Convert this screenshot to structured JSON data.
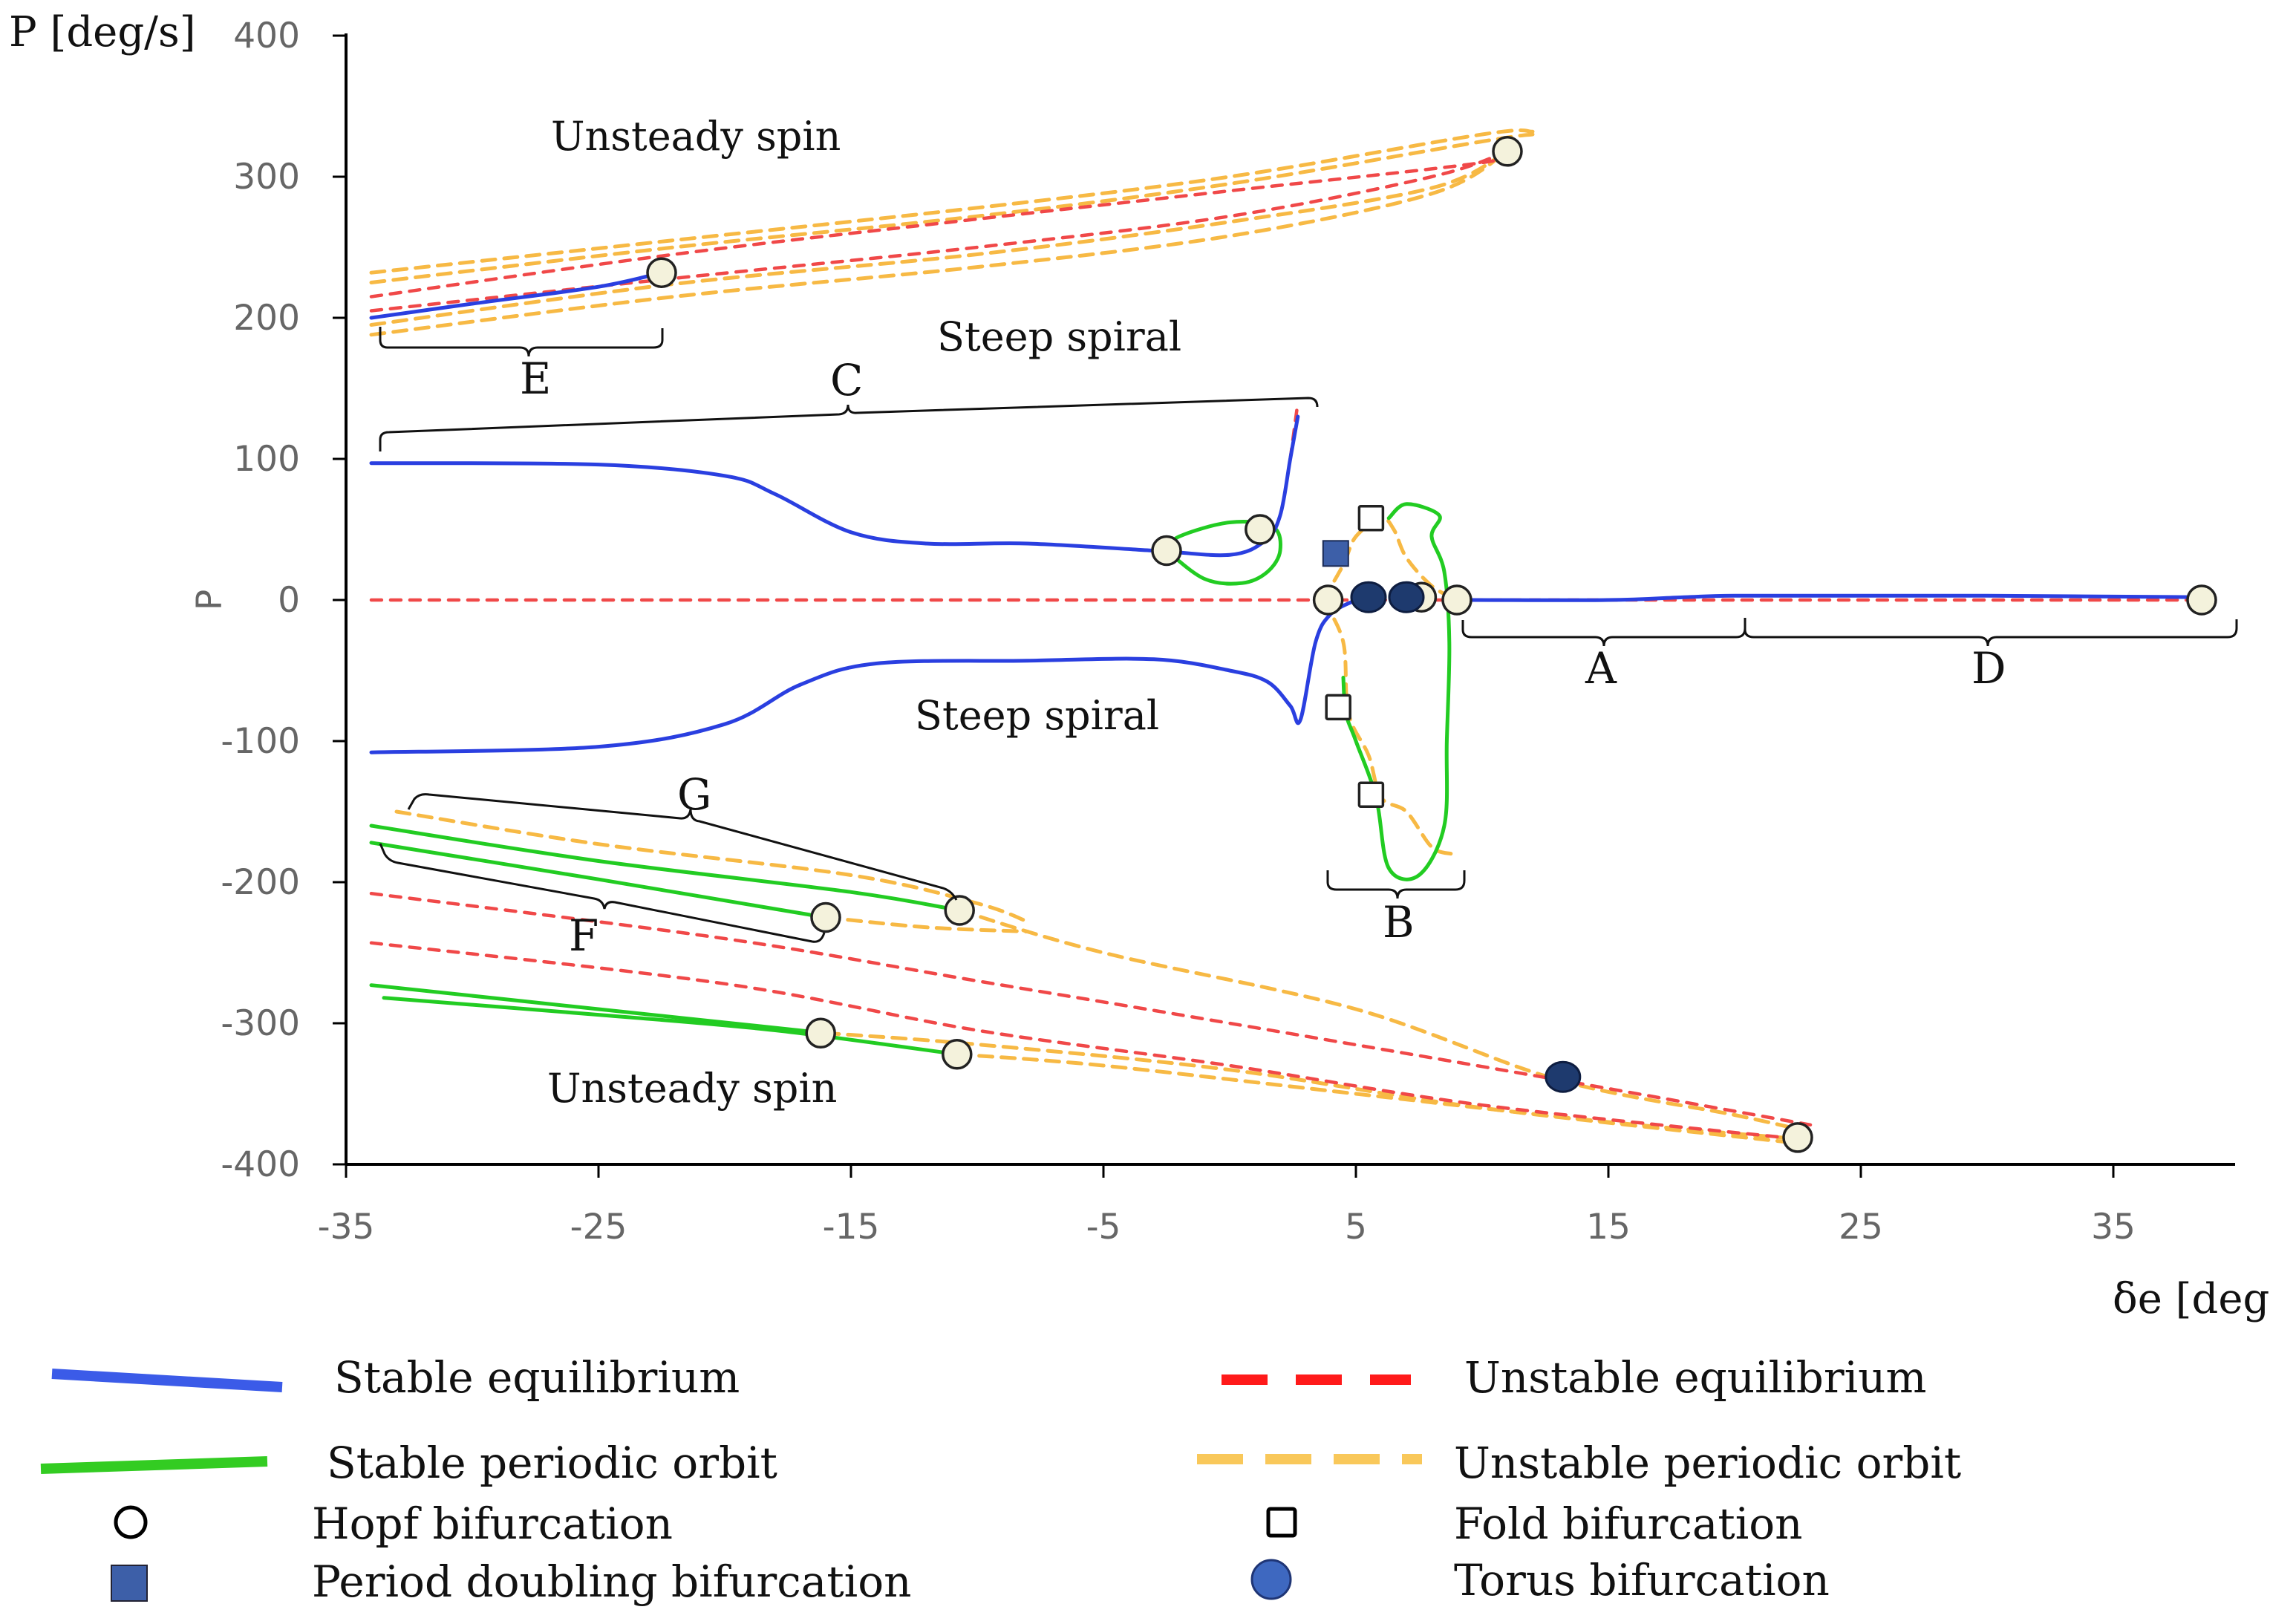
{
  "chart_data": {
    "type": "line",
    "title": "",
    "ylabel": "P [deg/s]",
    "ylabel_inner": "P",
    "xlabel": "δe [deg]",
    "xlim": [
      -35,
      40
    ],
    "ylim": [
      -400,
      400
    ],
    "x_ticks": [
      "-35",
      "-25",
      "-15",
      "-5",
      "5",
      "15",
      "25",
      "35"
    ],
    "y_ticks": [
      "400",
      "300",
      "200",
      "100",
      "0",
      "-100",
      "-200",
      "-300",
      "-400"
    ],
    "annotations": {
      "unsteady_spin_top": "Unsteady spin",
      "steep_spiral_top": "Steep spiral",
      "steep_spiral_bottom": "Steep spiral",
      "unsteady_spin_bottom": "Unsteady spin"
    },
    "regions": {
      "A": "A",
      "B": "B",
      "C": "C",
      "D": "D",
      "E": "E",
      "F": "F",
      "G": "G"
    },
    "legend": {
      "stable_eq": "Stable equilibrium",
      "unstable_eq": "Unstable equilibrium",
      "stable_po": "Stable periodic orbit",
      "unstable_po": "Unstable periodic orbit",
      "hopf": "Hopf bifurcation",
      "fold": "Fold bifurcation",
      "pd": "Period doubling bifurcation",
      "torus": "Torus  bifurcation"
    },
    "colors": {
      "stable_eq": "#2a3fe0",
      "unstable_eq": "#f04848",
      "stable_po": "#22cc22",
      "unstable_po": "#f7b944",
      "hopf_fill": "#f4f2dc",
      "torus_fill": "#1e3a6e",
      "pd_fill": "#3d5fa8"
    },
    "series": [
      {
        "name": "Stable equilibrium (upper)",
        "style": "stable_eq",
        "points": [
          [
            -34,
            97
          ],
          [
            -25,
            96
          ],
          [
            -20,
            88
          ],
          [
            -18,
            75
          ],
          [
            -15,
            48
          ],
          [
            -12,
            40
          ],
          [
            -8,
            40
          ],
          [
            -3,
            35
          ],
          [
            0,
            32
          ],
          [
            1.4,
            42
          ],
          [
            2,
            60
          ],
          [
            2.4,
            100
          ],
          [
            2.7,
            130
          ]
        ]
      },
      {
        "name": "Stable equilibrium (lower)",
        "style": "stable_eq",
        "points": [
          [
            -34,
            -108
          ],
          [
            -25,
            -104
          ],
          [
            -20,
            -88
          ],
          [
            -17,
            -60
          ],
          [
            -14,
            -45
          ],
          [
            -8,
            -43
          ],
          [
            -3,
            -42
          ],
          [
            0,
            -50
          ],
          [
            1.5,
            -58
          ],
          [
            2.4,
            -75
          ],
          [
            2.8,
            -85
          ],
          [
            3.4,
            -30
          ],
          [
            4,
            -10
          ],
          [
            5,
            0
          ]
        ]
      },
      {
        "name": "Stable equilibrium (A)",
        "style": "stable_eq",
        "points": [
          [
            9.5,
            0
          ],
          [
            15,
            0
          ],
          [
            18,
            2
          ],
          [
            20,
            3
          ],
          [
            25,
            3
          ],
          [
            30,
            3
          ],
          [
            38.5,
            2
          ]
        ]
      },
      {
        "name": "Stable equilibrium (E)",
        "style": "stable_eq",
        "points": [
          [
            -34,
            200
          ],
          [
            -30,
            210
          ],
          [
            -25,
            222
          ],
          [
            -22.5,
            232
          ]
        ]
      },
      {
        "name": "Unstable equilibrium (zero)",
        "style": "unstable_eq",
        "points": [
          [
            -34,
            0
          ],
          [
            -20,
            0
          ],
          [
            -10,
            0
          ],
          [
            0,
            0
          ],
          [
            4,
            0
          ],
          [
            10,
            0
          ],
          [
            20,
            0
          ],
          [
            38.5,
            0
          ]
        ]
      },
      {
        "name": "Unstable equilibrium (spike)",
        "style": "unstable_eq",
        "points": [
          [
            2.4,
            100
          ],
          [
            2.7,
            140
          ]
        ]
      },
      {
        "name": "Unstable equilibrium (spin top 1)",
        "style": "unstable_eq",
        "points": [
          [
            -34,
            215
          ],
          [
            -22,
            245
          ],
          [
            -10,
            270
          ],
          [
            0,
            290
          ],
          [
            10,
            310
          ],
          [
            11,
            318
          ]
        ]
      },
      {
        "name": "Unstable equilibrium (spin top 2)",
        "style": "unstable_eq",
        "points": [
          [
            -34,
            205
          ],
          [
            -22,
            228
          ],
          [
            -10,
            250
          ],
          [
            0,
            272
          ],
          [
            8,
            300
          ],
          [
            11,
            318
          ]
        ]
      },
      {
        "name": "Unstable equilibrium (spin bottom 1)",
        "style": "unstable_eq",
        "points": [
          [
            -34,
            -208
          ],
          [
            -20,
            -240
          ],
          [
            -10,
            -270
          ],
          [
            0,
            -300
          ],
          [
            13,
            -340
          ],
          [
            23,
            -372
          ]
        ]
      },
      {
        "name": "Unstable equilibrium (spin bottom 2)",
        "style": "unstable_eq",
        "points": [
          [
            -34,
            -243
          ],
          [
            -20,
            -272
          ],
          [
            -10,
            -305
          ],
          [
            0,
            -330
          ],
          [
            10,
            -358
          ],
          [
            22.5,
            -382
          ]
        ]
      },
      {
        "name": "Stable periodic orbit (C loop)",
        "style": "stable_po",
        "points": [
          [
            -2.5,
            35
          ],
          [
            -1,
            15
          ],
          [
            0.5,
            12
          ],
          [
            1.5,
            20
          ],
          [
            2,
            35
          ],
          [
            1.7,
            52
          ],
          [
            0,
            55
          ],
          [
            -2,
            45
          ],
          [
            -2.5,
            35
          ]
        ]
      },
      {
        "name": "Stable periodic orbit (B)",
        "style": "stable_po",
        "points": [
          [
            4.5,
            -55
          ],
          [
            4.6,
            -80
          ],
          [
            5,
            -100
          ],
          [
            5.8,
            -140
          ],
          [
            6.3,
            -190
          ],
          [
            7.5,
            -195
          ],
          [
            8.5,
            -160
          ],
          [
            8.6,
            -100
          ],
          [
            8.7,
            -30
          ],
          [
            8.5,
            20
          ],
          [
            8,
            45
          ],
          [
            8.3,
            60
          ],
          [
            7,
            68
          ],
          [
            6.3,
            58
          ]
        ]
      },
      {
        "name": "Stable periodic orbit (G)",
        "style": "stable_po",
        "points": [
          [
            -34,
            -160
          ],
          [
            -25,
            -185
          ],
          [
            -15,
            -207
          ],
          [
            -10.7,
            -220
          ]
        ]
      },
      {
        "name": "Stable periodic orbit (F)",
        "style": "stable_po",
        "points": [
          [
            -34,
            -172
          ],
          [
            -25,
            -198
          ],
          [
            -20,
            -213
          ],
          [
            -16,
            -225
          ]
        ]
      },
      {
        "name": "Stable periodic orbit (lower spin 1)",
        "style": "stable_po",
        "points": [
          [
            -34,
            -273
          ],
          [
            -25,
            -290
          ],
          [
            -16,
            -307
          ]
        ]
      },
      {
        "name": "Stable periodic orbit (lower spin 2)",
        "style": "stable_po",
        "points": [
          [
            -33.5,
            -282
          ],
          [
            -25,
            -294
          ],
          [
            -18,
            -305
          ],
          [
            -10.8,
            -322
          ]
        ]
      },
      {
        "name": "Unstable periodic orbit (spin top 1)",
        "style": "unstable_po",
        "points": [
          [
            -34,
            232
          ],
          [
            -22,
            255
          ],
          [
            -10,
            278
          ],
          [
            0,
            300
          ],
          [
            10,
            330
          ],
          [
            12,
            332
          ]
        ]
      },
      {
        "name": "Unstable periodic orbit (spin top 2)",
        "style": "unstable_po",
        "points": [
          [
            -34,
            225
          ],
          [
            -22,
            250
          ],
          [
            -10,
            272
          ],
          [
            0,
            295
          ],
          [
            10,
            325
          ],
          [
            12,
            330
          ]
        ]
      },
      {
        "name": "Unstable periodic orbit (spin top 3)",
        "style": "unstable_po",
        "points": [
          [
            -34,
            195
          ],
          [
            -22,
            224
          ],
          [
            -10,
            245
          ],
          [
            0,
            268
          ],
          [
            8,
            292
          ],
          [
            11,
            318
          ]
        ]
      },
      {
        "name": "Unstable periodic orbit (spin top 4)",
        "style": "unstable_po",
        "points": [
          [
            -34,
            188
          ],
          [
            -22,
            215
          ],
          [
            -10,
            236
          ],
          [
            0,
            258
          ],
          [
            8,
            288
          ],
          [
            11,
            318
          ]
        ]
      },
      {
        "name": "Unstable periodic orbit (B left)",
        "style": "unstable_po",
        "points": [
          [
            3.7,
            0
          ],
          [
            4.5,
            -30
          ],
          [
            4.7,
            -80
          ],
          [
            5.5,
            -110
          ],
          [
            6,
            -140
          ],
          [
            7,
            -150
          ],
          [
            8,
            -175
          ],
          [
            8.8,
            -180
          ]
        ]
      },
      {
        "name": "Unstable periodic orbit (B top)",
        "style": "unstable_po",
        "points": [
          [
            3.7,
            0
          ],
          [
            4.5,
            25
          ],
          [
            5,
            45
          ],
          [
            6,
            58
          ],
          [
            6.5,
            50
          ],
          [
            7,
            30
          ],
          [
            8,
            10
          ],
          [
            9,
            0
          ]
        ]
      },
      {
        "name": "Unstable periodic orbit (G tail)",
        "style": "unstable_po",
        "points": [
          [
            -33,
            -150
          ],
          [
            -25,
            -173
          ],
          [
            -15,
            -195
          ],
          [
            -10,
            -215
          ],
          [
            -8,
            -228
          ]
        ]
      },
      {
        "name": "Unstable periodic orbit (F tail)",
        "style": "unstable_po",
        "points": [
          [
            -16,
            -225
          ],
          [
            -12,
            -232
          ],
          [
            -8,
            -235
          ]
        ]
      },
      {
        "name": "Unstable periodic orbit (lower spin 1)",
        "style": "unstable_po",
        "points": [
          [
            -16,
            -307
          ],
          [
            -10,
            -315
          ],
          [
            0,
            -333
          ],
          [
            10,
            -360
          ],
          [
            22.5,
            -385
          ]
        ]
      },
      {
        "name": "Unstable periodic orbit (lower spin 2)",
        "style": "unstable_po",
        "points": [
          [
            -10.8,
            -322
          ],
          [
            -5,
            -330
          ],
          [
            5,
            -350
          ],
          [
            15,
            -370
          ],
          [
            22.5,
            -382
          ]
        ]
      },
      {
        "name": "Unstable periodic orbit (G long)",
        "style": "unstable_po",
        "points": [
          [
            -10.7,
            -220
          ],
          [
            -5,
            -250
          ],
          [
            5,
            -290
          ],
          [
            13,
            -340
          ],
          [
            20,
            -365
          ],
          [
            22.5,
            -375
          ]
        ]
      }
    ],
    "markers": [
      {
        "type": "hopf",
        "x": 11,
        "y": 318
      },
      {
        "type": "hopf",
        "x": -22.5,
        "y": 232
      },
      {
        "type": "hopf",
        "x": -2.5,
        "y": 35
      },
      {
        "type": "hopf",
        "x": 1.2,
        "y": 50
      },
      {
        "type": "hopf",
        "x": 3.9,
        "y": 0
      },
      {
        "type": "hopf",
        "x": 7.6,
        "y": 2
      },
      {
        "type": "hopf",
        "x": 9,
        "y": 0
      },
      {
        "type": "hopf",
        "x": 38.5,
        "y": 0
      },
      {
        "type": "hopf",
        "x": -16,
        "y": -225
      },
      {
        "type": "hopf",
        "x": -10.7,
        "y": -220
      },
      {
        "type": "hopf",
        "x": -16.2,
        "y": -307
      },
      {
        "type": "hopf",
        "x": -10.8,
        "y": -322
      },
      {
        "type": "hopf",
        "x": 22.5,
        "y": -381
      },
      {
        "type": "torus",
        "x": 5.5,
        "y": 2
      },
      {
        "type": "torus",
        "x": 7,
        "y": 2
      },
      {
        "type": "torus",
        "x": 13.2,
        "y": -338
      },
      {
        "type": "fold",
        "x": 5.6,
        "y": 58
      },
      {
        "type": "fold",
        "x": 4.3,
        "y": -76
      },
      {
        "type": "fold",
        "x": 5.6,
        "y": -138
      },
      {
        "type": "pd",
        "x": 4.2,
        "y": 33
      }
    ]
  }
}
